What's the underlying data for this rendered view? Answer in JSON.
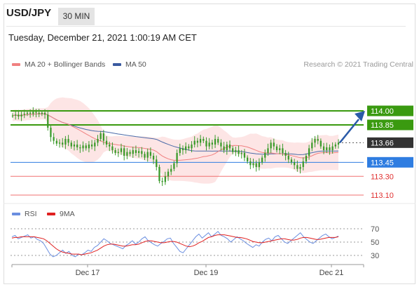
{
  "header": {
    "pair": "USD/JPY",
    "timeframe": "30 MIN",
    "datetime": "Tuesday, December 21, 2021 1:00:19 AM CET"
  },
  "legend": {
    "ma20_label": "MA 20 + Bollinger Bands",
    "ma50_label": "MA 50",
    "rsi_label": "RSI",
    "ma9_label": "9MA",
    "research": "Research © 2021 Trading Central"
  },
  "colors": {
    "candle": "#3a9a2a",
    "bollinger_fill": "#fde0e0",
    "ma20": "#f08080",
    "ma50": "#4a6aa8",
    "green_level": "#3a9a10",
    "blue_level": "#2f7de1",
    "red_level": "#f07070",
    "current_tag": "#333333",
    "rsi_line": "#6a8ee0",
    "rsi_ma": "#e02020",
    "arrow": "#2a5aa8"
  },
  "chart_data": [
    {
      "type": "candlestick",
      "title": "USD/JPY 30 MIN",
      "xlabel": "",
      "ylabel": "",
      "x_ticks": [
        "Dec 17",
        "Dec 19",
        "Dec 21"
      ],
      "ylim": [
        113.0,
        114.2
      ],
      "current_price": 113.66,
      "target_price": 114.0,
      "levels": [
        {
          "value": 114.0,
          "label": "114.00",
          "kind": "resistance"
        },
        {
          "value": 113.85,
          "label": "113.85",
          "kind": "resistance"
        },
        {
          "value": 113.66,
          "label": "113.66",
          "kind": "current"
        },
        {
          "value": 113.45,
          "label": "113.45",
          "kind": "pivot"
        },
        {
          "value": 113.3,
          "label": "113.30",
          "kind": "support"
        },
        {
          "value": 113.1,
          "label": "113.10",
          "kind": "support"
        }
      ],
      "close": [
        113.95,
        113.96,
        113.94,
        113.96,
        113.97,
        113.98,
        113.97,
        113.99,
        113.98,
        113.97,
        113.98,
        113.96,
        113.82,
        113.72,
        113.68,
        113.65,
        113.66,
        113.64,
        113.7,
        113.66,
        113.62,
        113.64,
        113.61,
        113.6,
        113.63,
        113.6,
        113.64,
        113.62,
        113.66,
        113.7,
        113.76,
        113.68,
        113.64,
        113.62,
        113.58,
        113.55,
        113.56,
        113.6,
        113.52,
        113.56,
        113.54,
        113.58,
        113.55,
        113.57,
        113.54,
        113.5,
        113.56,
        113.52,
        113.48,
        113.4,
        113.25,
        113.24,
        113.3,
        113.35,
        113.38,
        113.44,
        113.55,
        113.6,
        113.58,
        113.62,
        113.6,
        113.64,
        113.68,
        113.66,
        113.7,
        113.68,
        113.62,
        113.66,
        113.64,
        113.7,
        113.66,
        113.62,
        113.58,
        113.64,
        113.6,
        113.56,
        113.58,
        113.54,
        113.55,
        113.5,
        113.46,
        113.42,
        113.44,
        113.4,
        113.45,
        113.5,
        113.55,
        113.6,
        113.66,
        113.62,
        113.58,
        113.6,
        113.55,
        113.52,
        113.48,
        113.45,
        113.42,
        113.38,
        113.4,
        113.46,
        113.52,
        113.6,
        113.66,
        113.7,
        113.68,
        113.62,
        113.58,
        113.61,
        113.58,
        113.62,
        113.64,
        113.66
      ]
    },
    {
      "type": "line",
      "title": "RSI",
      "xlabel": "",
      "ylabel": "",
      "ylim": [
        20,
        80
      ],
      "y_ticks": [
        70,
        50,
        30
      ],
      "series": [
        {
          "name": "RSI",
          "values": [
            58,
            60,
            55,
            57,
            59,
            61,
            56,
            58,
            54,
            52,
            48,
            40,
            32,
            28,
            30,
            34,
            38,
            33,
            36,
            30,
            28,
            32,
            31,
            34,
            38,
            36,
            42,
            45,
            50,
            55,
            52,
            48,
            46,
            44,
            42,
            40,
            45,
            48,
            52,
            47,
            50,
            55,
            58,
            52,
            49,
            46,
            44,
            48,
            51,
            55,
            56,
            48,
            42,
            36,
            34,
            40,
            46,
            52,
            58,
            62,
            56,
            60,
            64,
            58,
            62,
            66,
            60,
            58,
            55,
            50,
            54,
            58,
            55,
            52,
            48,
            45,
            42,
            46,
            44,
            50,
            54,
            56,
            52,
            58,
            60,
            55,
            50,
            48,
            52,
            56,
            60,
            64,
            58,
            54,
            50,
            48,
            52,
            56,
            60,
            62,
            58,
            55,
            57,
            59
          ]
        },
        {
          "name": "9MA",
          "values": [
            56,
            57,
            57,
            58,
            58,
            58,
            58,
            58,
            57,
            56,
            55,
            52,
            48,
            44,
            40,
            37,
            35,
            34,
            33,
            32,
            32,
            32,
            31,
            32,
            33,
            34,
            36,
            38,
            41,
            44,
            46,
            47,
            47,
            46,
            45,
            44,
            44,
            45,
            46,
            46,
            47,
            49,
            51,
            52,
            52,
            51,
            50,
            49,
            49,
            50,
            51,
            51,
            50,
            48,
            46,
            44,
            43,
            44,
            46,
            49,
            51,
            54,
            57,
            58,
            60,
            61,
            61,
            61,
            60,
            59,
            58,
            57,
            57,
            56,
            55,
            53,
            51,
            50,
            49,
            49,
            50,
            51,
            52,
            53,
            54,
            55,
            55,
            54,
            53,
            53,
            54,
            56,
            57,
            57,
            56,
            55,
            54,
            54,
            55,
            56,
            57,
            57,
            57,
            58
          ]
        }
      ]
    }
  ]
}
